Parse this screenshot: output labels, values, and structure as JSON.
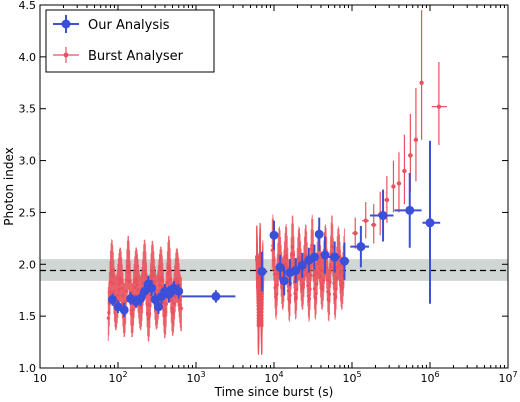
{
  "chart_data": {
    "type": "scatter",
    "xlabel": "Time since burst (s)",
    "ylabel": "Photon index",
    "xscale": "log",
    "xlim": [
      10,
      10000000
    ],
    "ylim": [
      1.0,
      4.5
    ],
    "x_tick_values": [
      10,
      100,
      1000,
      10000,
      100000,
      1000000,
      10000000
    ],
    "x_tick_labels": [
      "10",
      "2",
      "3",
      "4",
      "5",
      "6",
      "7"
    ],
    "y_ticks": [
      "1.0",
      "1.5",
      "2.0",
      "2.5",
      "3.0",
      "3.5",
      "4.0",
      "4.5"
    ],
    "grid": false,
    "legend": "top-left",
    "reference_line": {
      "y": 1.94,
      "style": "dashed",
      "color": "#000000"
    },
    "reference_band": {
      "y_low": 1.84,
      "y_high": 2.05,
      "color": "#cfd6d4"
    },
    "series": [
      {
        "name": "Our Analysis",
        "color": "#3b4fd8",
        "marker": "circle",
        "points": [
          {
            "x": 85,
            "y": 1.66,
            "xerr": [
              78,
              92
            ],
            "yerr": [
              1.6,
              1.72
            ]
          },
          {
            "x": 100,
            "y": 1.59,
            "xerr": [
              92,
              108
            ],
            "yerr": [
              1.53,
              1.65
            ]
          },
          {
            "x": 120,
            "y": 1.56,
            "xerr": [
              110,
              130
            ],
            "yerr": [
              1.49,
              1.63
            ]
          },
          {
            "x": 145,
            "y": 1.67,
            "xerr": [
              133,
              156
            ],
            "yerr": [
              1.61,
              1.73
            ]
          },
          {
            "x": 170,
            "y": 1.64,
            "xerr": [
              157,
              182
            ],
            "yerr": [
              1.58,
              1.7
            ]
          },
          {
            "x": 195,
            "y": 1.67,
            "xerr": [
              183,
              208
            ],
            "yerr": [
              1.6,
              1.74
            ]
          },
          {
            "x": 220,
            "y": 1.74,
            "xerr": [
              208,
              232
            ],
            "yerr": [
              1.67,
              1.81
            ]
          },
          {
            "x": 245,
            "y": 1.81,
            "xerr": [
              233,
              256
            ],
            "yerr": [
              1.73,
              1.89
            ]
          },
          {
            "x": 270,
            "y": 1.77,
            "xerr": [
              257,
              283
            ],
            "yerr": [
              1.69,
              1.85
            ]
          },
          {
            "x": 300,
            "y": 1.66,
            "xerr": [
              285,
              315
            ],
            "yerr": [
              1.59,
              1.73
            ]
          },
          {
            "x": 330,
            "y": 1.59,
            "xerr": [
              316,
              345
            ],
            "yerr": [
              1.52,
              1.66
            ]
          },
          {
            "x": 360,
            "y": 1.69,
            "xerr": [
              346,
              375
            ],
            "yerr": [
              1.62,
              1.76
            ]
          },
          {
            "x": 400,
            "y": 1.74,
            "xerr": [
              378,
              422
            ],
            "yerr": [
              1.67,
              1.81
            ]
          },
          {
            "x": 450,
            "y": 1.71,
            "xerr": [
              423,
              477
            ],
            "yerr": [
              1.63,
              1.79
            ]
          },
          {
            "x": 520,
            "y": 1.77,
            "xerr": [
              480,
              560
            ],
            "yerr": [
              1.7,
              1.84
            ]
          },
          {
            "x": 600,
            "y": 1.74,
            "xerr": [
              562,
              640
            ],
            "yerr": [
              1.67,
              1.81
            ]
          },
          {
            "x": 1800,
            "y": 1.69,
            "xerr": [
              650,
              3200
            ],
            "yerr": [
              1.63,
              1.75
            ]
          },
          {
            "x": 7000,
            "y": 1.93,
            "xerr": [
              6200,
              8200
            ],
            "yerr": [
              1.74,
              2.12
            ]
          },
          {
            "x": 10000,
            "y": 2.28,
            "xerr": [
              9300,
              10700
            ],
            "yerr": [
              2.14,
              2.42
            ]
          },
          {
            "x": 12000,
            "y": 1.97,
            "xerr": [
              10800,
              13100
            ],
            "yerr": [
              1.85,
              2.09
            ]
          },
          {
            "x": 13500,
            "y": 1.84,
            "xerr": [
              13100,
              14500
            ],
            "yerr": [
              1.7,
              1.98
            ]
          },
          {
            "x": 16000,
            "y": 1.92,
            "xerr": [
              14500,
              17500
            ],
            "yerr": [
              1.79,
              2.05
            ]
          },
          {
            "x": 19000,
            "y": 1.94,
            "xerr": [
              17500,
              21000
            ],
            "yerr": [
              1.82,
              2.06
            ]
          },
          {
            "x": 23000,
            "y": 1.99,
            "xerr": [
              21000,
              25000
            ],
            "yerr": [
              1.87,
              2.11
            ]
          },
          {
            "x": 28000,
            "y": 2.04,
            "xerr": [
              25500,
              30500
            ],
            "yerr": [
              1.92,
              2.16
            ]
          },
          {
            "x": 33000,
            "y": 2.07,
            "xerr": [
              30500,
              35500
            ],
            "yerr": [
              1.95,
              2.19
            ]
          },
          {
            "x": 38000,
            "y": 2.29,
            "xerr": [
              35500,
              40500
            ],
            "yerr": [
              2.13,
              2.45
            ]
          },
          {
            "x": 45000,
            "y": 2.09,
            "xerr": [
              40500,
              49500
            ],
            "yerr": [
              1.91,
              2.27
            ]
          },
          {
            "x": 60000,
            "y": 2.07,
            "xerr": [
              50000,
              70000
            ],
            "yerr": [
              1.92,
              2.22
            ]
          },
          {
            "x": 80000,
            "y": 2.03,
            "xerr": [
              70000,
              92000
            ],
            "yerr": [
              1.85,
              2.21
            ]
          },
          {
            "x": 130000,
            "y": 2.17,
            "xerr": [
              95000,
              165000
            ],
            "yerr": [
              1.97,
              2.37
            ]
          },
          {
            "x": 250000,
            "y": 2.47,
            "xerr": [
              170000,
              340000
            ],
            "yerr": [
              2.22,
              2.72
            ]
          },
          {
            "x": 550000,
            "y": 2.52,
            "xerr": [
              350000,
              780000
            ],
            "yerr": [
              2.16,
              2.88
            ]
          },
          {
            "x": 1000000,
            "y": 2.4,
            "xerr": [
              800000,
              1350000
            ],
            "yerr": [
              1.62,
              3.19
            ]
          }
        ]
      },
      {
        "name": "Burst Analyser",
        "color": "#e8525e",
        "marker": "small-circle",
        "dense_segments": [
          {
            "x_start": 75,
            "x_end": 650,
            "y_min": 1.47,
            "y_max": 1.98,
            "err_low": 0.22,
            "err_high": 0.3,
            "cycles": 9
          },
          {
            "x_start": 6000,
            "x_end": 7200,
            "y_min": 1.4,
            "y_max": 2.1,
            "err_low": 0.28,
            "err_high": 0.3,
            "cycles": 2
          },
          {
            "x_start": 9500,
            "x_end": 80000,
            "y_min": 1.62,
            "y_max": 2.18,
            "err_low": 0.2,
            "err_high": 0.3,
            "cycles": 11
          }
        ],
        "points": [
          {
            "x": 110000,
            "y": 2.3,
            "xerr": [
              100000,
              120000
            ],
            "yerr": [
              2.15,
              2.45
            ]
          },
          {
            "x": 150000,
            "y": 2.42,
            "xerr": [
              135000,
              165000
            ],
            "yerr": [
              2.25,
              2.6
            ]
          },
          {
            "x": 190000,
            "y": 2.38,
            "xerr": [
              175000,
              205000
            ],
            "yerr": [
              2.2,
              2.58
            ]
          },
          {
            "x": 230000,
            "y": 2.48,
            "xerr": [
              215000,
              245000
            ],
            "yerr": [
              2.28,
              2.7
            ]
          },
          {
            "x": 280000,
            "y": 2.62,
            "xerr": [
              260000,
              300000
            ],
            "yerr": [
              2.4,
              2.85
            ]
          },
          {
            "x": 340000,
            "y": 2.75,
            "xerr": [
              320000,
              360000
            ],
            "yerr": [
              2.5,
              3.0
            ]
          },
          {
            "x": 400000,
            "y": 2.78,
            "xerr": [
              375000,
              425000
            ],
            "yerr": [
              2.5,
              3.08
            ]
          },
          {
            "x": 470000,
            "y": 2.9,
            "xerr": [
              440000,
              500000
            ],
            "yerr": [
              2.58,
              3.25
            ]
          },
          {
            "x": 560000,
            "y": 3.05,
            "xerr": [
              520000,
              600000
            ],
            "yerr": [
              2.7,
              3.45
            ]
          },
          {
            "x": 660000,
            "y": 3.2,
            "xerr": [
              620000,
              700000
            ],
            "yerr": [
              2.8,
              3.7
            ]
          },
          {
            "x": 780000,
            "y": 3.75,
            "xerr": [
              740000,
              820000
            ],
            "yerr": [
              3.2,
              4.45
            ]
          },
          {
            "x": 1300000,
            "y": 3.52,
            "xerr": [
              1050000,
              1650000
            ],
            "yerr": [
              3.15,
              3.95
            ]
          }
        ]
      }
    ]
  }
}
